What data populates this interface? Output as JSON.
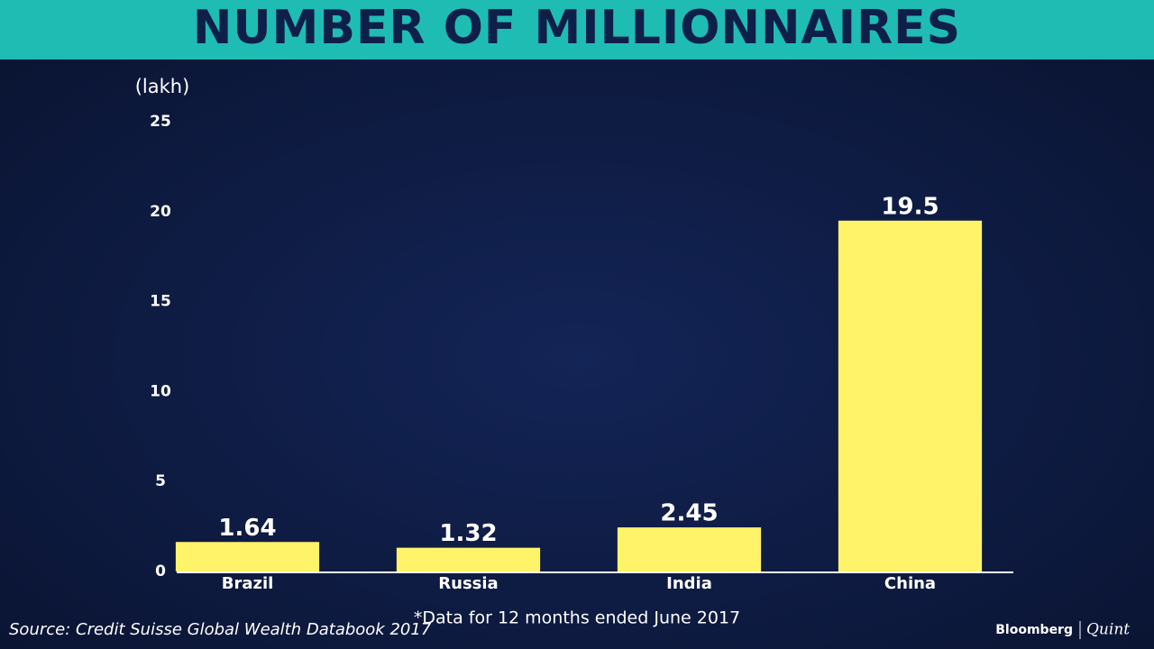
{
  "chart_data": {
    "type": "bar",
    "title": "NUMBER OF MILLIONNAIRES",
    "y_unit": "(lakh)",
    "categories": [
      "Brazil",
      "Russia",
      "India",
      "China"
    ],
    "values": [
      1.64,
      1.32,
      2.45,
      19.5
    ],
    "color": "#fff36a",
    "ylim": [
      0,
      25
    ],
    "yticks": [
      0,
      5,
      10,
      15,
      20,
      25
    ],
    "grid": false,
    "note": "*Data for 12 months ended June 2017",
    "source": "Source: Credit Suisse Global Wealth Databook 2017"
  },
  "branding": {
    "brand": "Bloomberg",
    "sub_brand": "Quint"
  }
}
